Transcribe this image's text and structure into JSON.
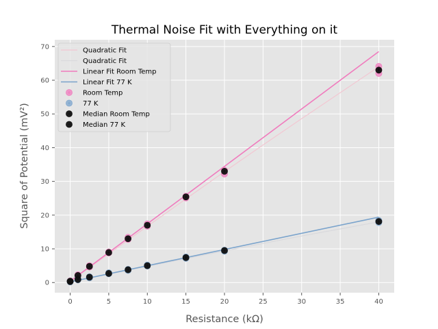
{
  "chart_data": {
    "type": "scatter",
    "title": "Thermal Noise Fit with Everything on it",
    "xlabel": "Resistance (kΩ)",
    "ylabel": "Square of Potential (mV²)",
    "xlim": [
      -2,
      42
    ],
    "ylim": [
      -3,
      72
    ],
    "xticks": [
      0,
      5,
      10,
      15,
      20,
      25,
      30,
      35,
      40
    ],
    "yticks": [
      0,
      10,
      20,
      30,
      40,
      50,
      60,
      70
    ],
    "grid": true,
    "legend_position": "upper-left",
    "colors": {
      "background": "#e5e5e5",
      "grid": "#ffffff",
      "room_temp": "#f07bbd",
      "k77": "#7aa3cc",
      "quad_room": "#f2c7d2",
      "quad_77": "#d9d9dd",
      "median": "#111111"
    },
    "series": [
      {
        "name": "Quadratic Fit",
        "kind": "line",
        "color": "#f2c7d2",
        "x": [
          0,
          5,
          10,
          15,
          20,
          25,
          30,
          35,
          40
        ],
        "y": [
          0.4,
          8.5,
          16.7,
          24.8,
          32.9,
          40.8,
          48.6,
          56.3,
          64.0
        ]
      },
      {
        "name": "Quadratic Fit",
        "kind": "line",
        "color": "#d9d9dd",
        "x": [
          0,
          5,
          10,
          15,
          20,
          25,
          30,
          35,
          40
        ],
        "y": [
          0.2,
          2.5,
          4.8,
          7.1,
          9.4,
          11.6,
          13.8,
          15.9,
          18.0
        ]
      },
      {
        "name": "Linear Fit Room Temp",
        "kind": "line",
        "color": "#f07bbd",
        "x": [
          0,
          40
        ],
        "y": [
          0.4,
          68.5
        ]
      },
      {
        "name": "Linear Fit 77 K",
        "kind": "line",
        "color": "#7aa3cc",
        "x": [
          0,
          40
        ],
        "y": [
          0.2,
          19.4
        ]
      },
      {
        "name": "Room Temp",
        "kind": "points",
        "color": "#f07bbd",
        "x": [
          0,
          0,
          1,
          1,
          2.5,
          2.5,
          5,
          5,
          7.5,
          7.5,
          10,
          10,
          15,
          15,
          20,
          20,
          40,
          40,
          40
        ],
        "y": [
          0.3,
          0.5,
          2.0,
          2.3,
          4.6,
          5.0,
          8.8,
          9.1,
          12.8,
          13.4,
          16.7,
          17.4,
          25.1,
          25.6,
          32.2,
          33.3,
          62.0,
          63.0,
          64.1
        ]
      },
      {
        "name": "77 K",
        "kind": "points",
        "color": "#7aa3cc",
        "x": [
          0,
          0,
          1,
          1,
          2.5,
          2.5,
          5,
          5,
          7.5,
          7.5,
          10,
          10,
          15,
          15,
          20,
          20,
          40,
          40
        ],
        "y": [
          0.2,
          0.4,
          0.8,
          1.1,
          1.4,
          1.7,
          2.6,
          2.9,
          3.6,
          3.9,
          4.9,
          5.2,
          7.2,
          7.6,
          9.3,
          9.6,
          17.8,
          18.4
        ]
      },
      {
        "name": "Median Room Temp",
        "kind": "median",
        "color": "#111111",
        "x": [
          0,
          1,
          2.5,
          5,
          7.5,
          10,
          15,
          20,
          40
        ],
        "y": [
          0.4,
          2.1,
          4.8,
          8.9,
          13.0,
          17.0,
          25.4,
          33.0,
          63.0
        ]
      },
      {
        "name": "Median 77 K",
        "kind": "median",
        "color": "#111111",
        "x": [
          0,
          1,
          2.5,
          5,
          7.5,
          10,
          15,
          20,
          40
        ],
        "y": [
          0.3,
          0.9,
          1.6,
          2.7,
          3.8,
          5.0,
          7.4,
          9.5,
          18.1
        ]
      }
    ],
    "legend": [
      {
        "label": "Quadratic Fit",
        "marker": "line",
        "color": "#f2c7d2"
      },
      {
        "label": "Quadratic Fit",
        "marker": "line",
        "color": "#d9d9dd"
      },
      {
        "label": "Linear Fit Room Temp",
        "marker": "line",
        "color": "#f07bbd"
      },
      {
        "label": "Linear Fit 77 K",
        "marker": "line",
        "color": "#7aa3cc"
      },
      {
        "label": "Room Temp",
        "marker": "errpoint",
        "color": "#f07bbd"
      },
      {
        "label": "77 K",
        "marker": "errpoint",
        "color": "#7aa3cc"
      },
      {
        "label": "Median Room Temp",
        "marker": "errpoint",
        "color": "#111111"
      },
      {
        "label": "Median 77 K",
        "marker": "errpoint",
        "color": "#111111"
      }
    ]
  }
}
